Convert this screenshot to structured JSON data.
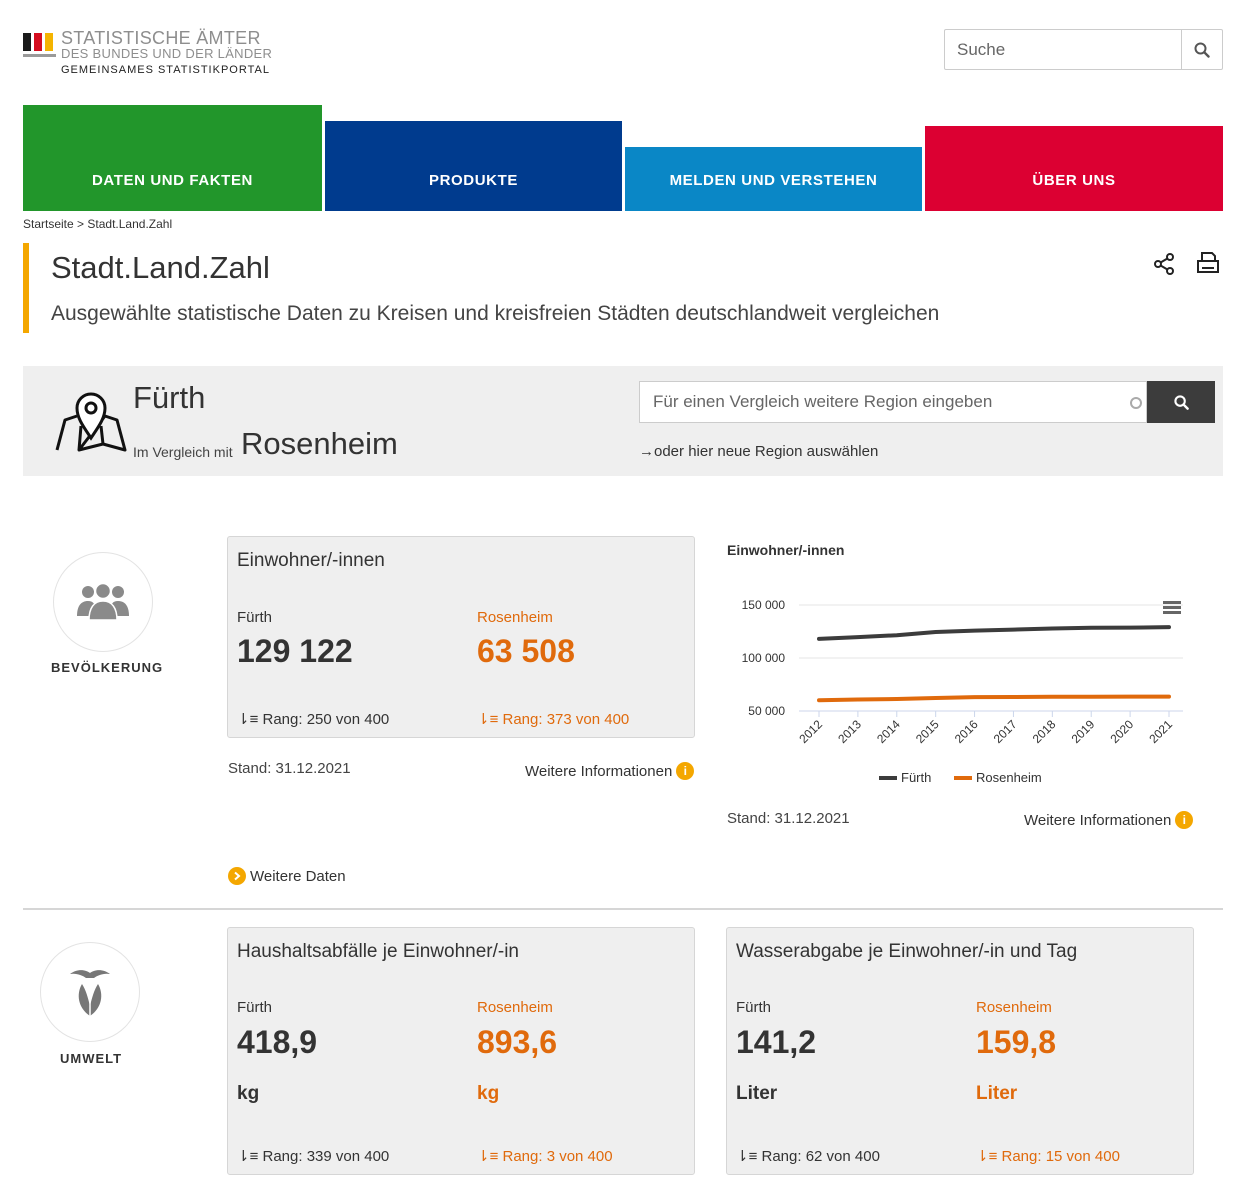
{
  "header": {
    "logo_line1": "STATISTISCHE ÄMTER",
    "logo_line2": "DES BUNDES UND DER LÄNDER",
    "logo_line3": "GEMEINSAMES STATISTIKPORTAL",
    "search_placeholder": "Suche"
  },
  "nav": [
    {
      "label": "DATEN UND FAKTEN",
      "color": "#22962b"
    },
    {
      "label": "PRODUKTE",
      "color": "#003b8e"
    },
    {
      "label": "MELDEN UND VERSTEHEN",
      "color": "#0a87c6"
    },
    {
      "label": "ÜBER UNS",
      "color": "#dc0032"
    }
  ],
  "breadcrumb": {
    "home": "Startseite",
    "separator": ">",
    "current": "Stadt.Land.Zahl"
  },
  "page": {
    "title": "Stadt.Land.Zahl",
    "subtitle": "Ausgewählte statistische Daten zu Kreisen und kreisfreien Städten deutschlandweit vergleichen"
  },
  "region": {
    "main": "Fürth",
    "compare_label": "Im Vergleich mit",
    "compare_region": "Rosenheim",
    "search_placeholder": "Für einen Vergleich weitere Region eingeben",
    "new_region_link": "oder hier neue Region auswählen"
  },
  "categories": {
    "population": "BEVÖLKERUNG",
    "environment": "UMWELT"
  },
  "cards": {
    "population": {
      "title": "Einwohner/-innen",
      "region_a": "Fürth",
      "region_b": "Rosenheim",
      "value_a": "129 122",
      "value_b": "63 508",
      "rank_a": "Rang: 250 von 400",
      "rank_b": "Rang: 373 von 400",
      "stand": "Stand: 31.12.2021",
      "more_info": "Weitere Informationen"
    },
    "waste": {
      "title": "Haushaltsabfälle je Einwohner/-in",
      "region_a": "Fürth",
      "region_b": "Rosenheim",
      "value_a": "418,9",
      "value_b": "893,6",
      "unit_a": "kg",
      "unit_b": "kg",
      "rank_a": "Rang: 339 von 400",
      "rank_b": "Rang: 3 von 400"
    },
    "water": {
      "title": "Wasserabgabe je Einwohner/-in und Tag",
      "region_a": "Fürth",
      "region_b": "Rosenheim",
      "value_a": "141,2",
      "value_b": "159,8",
      "unit_a": "Liter",
      "unit_b": "Liter",
      "rank_a": "Rang: 62 von 400",
      "rank_b": "Rang: 15 von 400"
    }
  },
  "chart_section": {
    "stand": "Stand: 31.12.2021",
    "more_info": "Weitere Informationen"
  },
  "more_data": "Weitere Daten",
  "colors": {
    "accent": "#f4a700",
    "orange": "#e06a0c",
    "dark": "#333333"
  },
  "chart_data": {
    "type": "line",
    "title": "Einwohner/-innen",
    "x": [
      "2012",
      "2013",
      "2014",
      "2015",
      "2016",
      "2017",
      "2018",
      "2019",
      "2020",
      "2021"
    ],
    "series": [
      {
        "name": "Fürth",
        "color": "#3c3c3c",
        "values": [
          118000,
          119700,
          121500,
          124500,
          125800,
          126800,
          127800,
          128500,
          128600,
          129122
        ]
      },
      {
        "name": "Rosenheim",
        "color": "#e06a0c",
        "values": [
          60200,
          60800,
          61300,
          62300,
          63100,
          63200,
          63400,
          63500,
          63600,
          63508
        ]
      }
    ],
    "yticks": [
      50000,
      100000,
      150000
    ],
    "ytick_labels": [
      "50 000",
      "100 000",
      "150 000"
    ],
    "ylim": [
      50000,
      150000
    ],
    "grid": true,
    "legend": "bottom"
  }
}
